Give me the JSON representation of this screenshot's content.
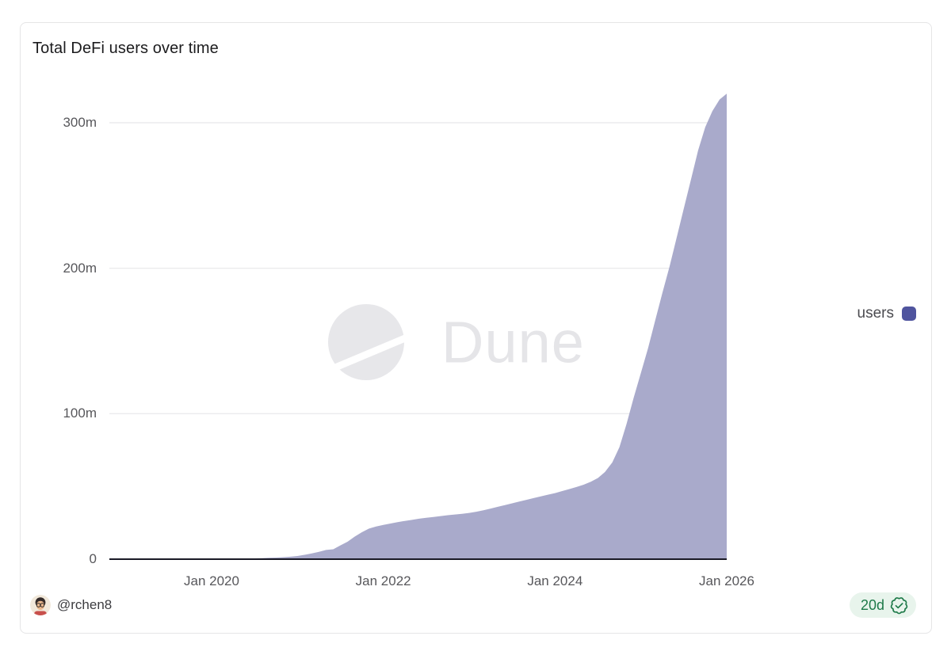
{
  "title": "Total DeFi users over time",
  "legend": {
    "label": "users",
    "swatch_color": "#4f549e"
  },
  "watermark": {
    "text": "Dune"
  },
  "footer": {
    "handle": "@rchen8",
    "badge_age": "20d"
  },
  "icons": {
    "badge_seal": "verified-seal-check",
    "avatar": "rchen8-profile-avatar"
  },
  "colors": {
    "area_fill": "#a9aacb",
    "axis_line": "#1a1a26",
    "gridline": "#ebebed",
    "watermark_fill": "#e7e7ea",
    "badge_bg": "#e8f4ec",
    "badge_fg": "#1e7a49",
    "tick_text": "#57575b"
  },
  "chart_data": {
    "type": "area",
    "title": "Total DeFi users over time",
    "series_name": "users",
    "unit": "millions of users",
    "ylim": [
      0,
      320
    ],
    "grid": "horizontal",
    "legend_position": "right",
    "y_ticks": [
      {
        "label": "0",
        "value": 0
      },
      {
        "label": "100m",
        "value": 100
      },
      {
        "label": "200m",
        "value": 200
      },
      {
        "label": "300m",
        "value": 300
      }
    ],
    "x_ticks": [
      {
        "label": "Jan 2020",
        "date": "2020-01"
      },
      {
        "label": "Jan 2022",
        "date": "2022-01"
      },
      {
        "label": "Jan 2024",
        "date": "2024-01"
      },
      {
        "label": "Jan 2026",
        "date": "2026-01"
      }
    ],
    "dates": [
      "2018-11",
      "2019-03",
      "2019-07",
      "2019-11",
      "2020-01",
      "2020-03",
      "2020-05",
      "2020-07",
      "2020-08",
      "2020-09",
      "2020-10",
      "2020-11",
      "2020-12",
      "2021-01",
      "2021-02",
      "2021-03",
      "2021-04",
      "2021-05",
      "2021-06",
      "2021-07",
      "2021-08",
      "2021-09",
      "2021-10",
      "2021-11",
      "2021-12",
      "2022-01",
      "2022-02",
      "2022-03",
      "2022-04",
      "2022-05",
      "2022-06",
      "2022-07",
      "2022-08",
      "2022-09",
      "2022-10",
      "2022-11",
      "2022-12",
      "2023-01",
      "2023-02",
      "2023-03",
      "2023-04",
      "2023-05",
      "2023-06",
      "2023-07",
      "2023-08",
      "2023-09",
      "2023-10",
      "2023-11",
      "2023-12",
      "2024-01",
      "2024-02",
      "2024-03",
      "2024-04",
      "2024-05",
      "2024-06",
      "2024-07",
      "2024-08",
      "2024-09",
      "2024-10",
      "2024-11",
      "2024-12",
      "2025-01",
      "2025-02",
      "2025-03",
      "2025-04",
      "2025-05",
      "2025-06",
      "2025-07",
      "2025-08",
      "2025-09",
      "2025-10",
      "2025-11",
      "2025-12",
      "2026-01"
    ],
    "values": [
      0.05,
      0.1,
      0.15,
      0.2,
      0.25,
      0.3,
      0.4,
      0.55,
      0.7,
      0.9,
      1.1,
      1.35,
      1.7,
      2.2,
      3.0,
      4.0,
      5.0,
      6.3,
      6.8,
      9.5,
      12,
      15.5,
      18.5,
      21,
      22.5,
      23.5,
      24.5,
      25.5,
      26.3,
      27,
      27.8,
      28.4,
      29,
      29.6,
      30.2,
      30.7,
      31.2,
      31.8,
      32.6,
      33.6,
      34.8,
      36,
      37.2,
      38.4,
      39.6,
      40.8,
      42,
      43.2,
      44.3,
      45.4,
      46.8,
      48.2,
      49.6,
      51.2,
      53.2,
      55.8,
      60,
      66.5,
      77,
      93,
      111,
      128,
      145,
      164,
      183,
      201,
      221,
      241,
      261,
      281,
      297,
      308,
      316,
      320
    ]
  }
}
